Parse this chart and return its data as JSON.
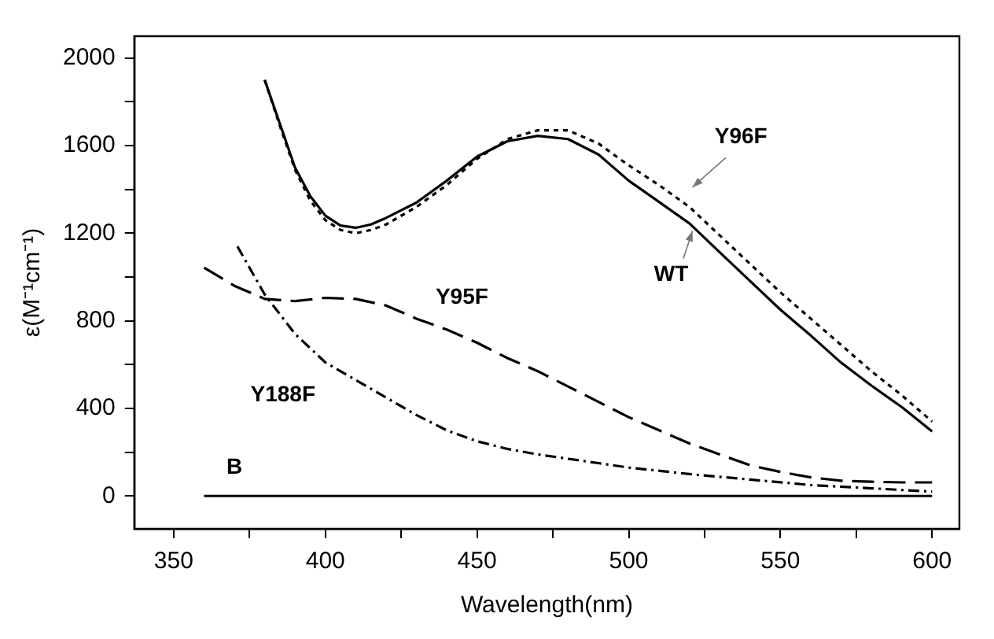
{
  "chart_data": {
    "type": "line",
    "xlabel": "Wavelength(nm)",
    "ylabel": "ε(M⁻¹cm⁻¹)",
    "xlim": [
      337,
      609
    ],
    "ylim": [
      -150,
      2100
    ],
    "xticks": [
      350,
      {
        "value": 375,
        "label": null
      },
      400,
      {
        "value": 425,
        "label": null
      },
      450,
      {
        "value": 475,
        "label": null
      },
      500,
      {
        "value": 525,
        "label": null
      },
      550,
      {
        "value": 575,
        "label": null
      },
      600
    ],
    "yticks": [
      0,
      {
        "value": 200,
        "label": null
      },
      400,
      {
        "value": 600,
        "label": null
      },
      800,
      {
        "value": 1000,
        "label": null
      },
      1200,
      {
        "value": 1400,
        "label": null
      },
      1600,
      {
        "value": 1800,
        "label": null
      },
      2000
    ],
    "grid": false,
    "legend": false,
    "marker": "none",
    "series": [
      {
        "name": "WT",
        "color": "#000000",
        "line_style": "solid",
        "x": [
          380,
          385,
          390,
          395,
          400,
          405,
          410,
          415,
          420,
          430,
          440,
          450,
          460,
          470,
          480,
          490,
          500,
          510,
          520,
          530,
          540,
          550,
          560,
          570,
          580,
          590,
          600
        ],
        "values": [
          1900,
          1700,
          1500,
          1370,
          1280,
          1235,
          1225,
          1240,
          1270,
          1340,
          1440,
          1550,
          1620,
          1645,
          1630,
          1560,
          1440,
          1343,
          1245,
          1113,
          982,
          851,
          733,
          609,
          504,
          406,
          295
        ]
      },
      {
        "name": "Y96F",
        "color": "#000000",
        "line_style": "dotted",
        "x": [
          380,
          385,
          390,
          395,
          400,
          405,
          410,
          415,
          420,
          430,
          440,
          450,
          460,
          470,
          480,
          490,
          500,
          510,
          520,
          530,
          540,
          550,
          560,
          570,
          580,
          590,
          600
        ],
        "values": [
          1900,
          1690,
          1490,
          1350,
          1260,
          1215,
          1200,
          1215,
          1240,
          1320,
          1420,
          1540,
          1630,
          1670,
          1670,
          1610,
          1510,
          1420,
          1320,
          1190,
          1060,
          930,
          810,
          690,
          570,
          460,
          340
        ]
      },
      {
        "name": "Y95F",
        "color": "#000000",
        "line_style": "dashed",
        "x": [
          360,
          370,
          380,
          390,
          400,
          410,
          420,
          430,
          440,
          450,
          460,
          470,
          480,
          490,
          500,
          510,
          520,
          530,
          540,
          550,
          560,
          570,
          580,
          590,
          600
        ],
        "values": [
          1043,
          960,
          900,
          890,
          905,
          900,
          870,
          810,
          760,
          700,
          630,
          570,
          500,
          430,
          360,
          300,
          240,
          190,
          140,
          110,
          85,
          70,
          65,
          62,
          62
        ]
      },
      {
        "name": "Y188F",
        "color": "#000000",
        "line_style": "dashdot",
        "x": [
          371,
          380,
          390,
          400,
          410,
          420,
          430,
          440,
          450,
          460,
          470,
          480,
          490,
          500,
          520,
          540,
          560,
          580,
          600
        ],
        "values": [
          1140,
          920,
          740,
          610,
          530,
          450,
          370,
          300,
          250,
          215,
          190,
          170,
          150,
          130,
          100,
          75,
          50,
          35,
          20
        ]
      },
      {
        "name": "B",
        "color": "#000000",
        "line_style": "solid",
        "x": [
          360,
          600
        ],
        "values": [
          0,
          0
        ]
      }
    ]
  }
}
